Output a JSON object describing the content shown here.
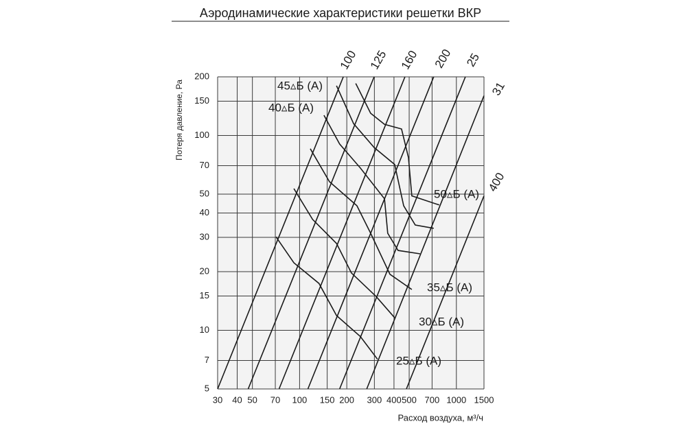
{
  "chart_data": {
    "type": "line",
    "title": "Аэродинамические характеристики решетки ВКР",
    "x_label": "Расход воздуха, м³/ч",
    "y_label": "Потеря давление, Ра",
    "log_x": true,
    "log_y": true,
    "grid": true,
    "xlim": [
      30,
      1500
    ],
    "ylim": [
      5,
      200
    ],
    "xticks": [
      30,
      40,
      50,
      70,
      100,
      150,
      200,
      300,
      400,
      500,
      700,
      1000,
      1500
    ],
    "yticks": [
      5,
      7,
      10,
      15,
      20,
      30,
      40,
      50,
      70,
      100,
      150,
      200
    ],
    "series": [
      {
        "name": "100",
        "color": "#1a1a1a",
        "x": [
          30,
          190
        ],
        "values": [
          5,
          200
        ]
      },
      {
        "name": "125",
        "color": "#1a1a1a",
        "x": [
          47,
          299
        ],
        "values": [
          5,
          200
        ]
      },
      {
        "name": "160",
        "color": "#1a1a1a",
        "x": [
          74,
          470
        ],
        "values": [
          5,
          200
        ]
      },
      {
        "name": "200",
        "color": "#1a1a1a",
        "x": [
          113,
          717
        ],
        "values": [
          5,
          200
        ]
      },
      {
        "name": "25",
        "color": "#1a1a1a",
        "x": [
          180,
          1141
        ],
        "values": [
          5,
          200
        ]
      },
      {
        "name": "31",
        "color": "#1a1a1a",
        "x": [
          268,
          1500
        ],
        "values": [
          5,
          160
        ]
      },
      {
        "name": "400",
        "color": "#1a1a1a",
        "x": [
          480,
          1500
        ],
        "values": [
          5,
          49
        ]
      },
      {
        "name": "45▵Б (А)",
        "color": "#1a1a1a",
        "x": [
          172,
          221,
          299,
          404,
          461,
          547,
          717
        ],
        "values": [
          180,
          115,
          86.8,
          71,
          43.6,
          34.7,
          33.4
        ]
      },
      {
        "name": "40▵Б (А)",
        "color": "#1a1a1a",
        "x": [
          143,
          180,
          244,
          348,
          365,
          425,
          587
        ],
        "values": [
          127,
          90.4,
          68.1,
          47.3,
          31.5,
          25.7,
          24.7
        ]
      },
      {
        "name": "50▵Б (А)",
        "color": "#1a1a1a",
        "x": [
          228,
          284,
          348,
          447,
          495,
          520,
          777
        ],
        "values": [
          185,
          130,
          114,
          108,
          77,
          49,
          44
        ]
      },
      {
        "name": "35▵Б (А)",
        "color": "#1a1a1a",
        "x": [
          117,
          155,
          232,
          284,
          377,
          520
        ],
        "values": [
          85.5,
          57.9,
          43.6,
          31.5,
          19.4,
          16.2
        ]
      },
      {
        "name": "30▵Б (А)",
        "color": "#1a1a1a",
        "x": [
          92,
          121,
          172,
          214,
          308,
          404
        ],
        "values": [
          53.4,
          37.1,
          27.9,
          19.7,
          14.9,
          11.6
        ]
      },
      {
        "name": "25▵Б (А)",
        "color": "#1a1a1a",
        "x": [
          70.7,
          92,
          133,
          172,
          244,
          314
        ],
        "values": [
          30.2,
          22.2,
          17.4,
          11.9,
          9.3,
          7.1
        ]
      }
    ]
  }
}
